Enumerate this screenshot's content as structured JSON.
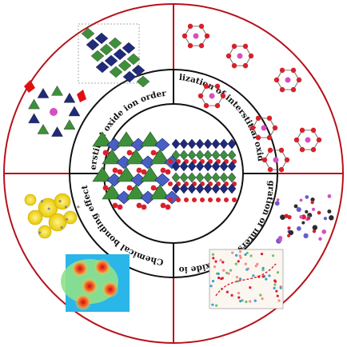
{
  "figure": {
    "ring_color": "#b5121b",
    "labels": {
      "top_left": "Interstitial oxide ion ordering",
      "top_right": "Stabilization of interstitial oxide ions",
      "bottom_right": "Migration of interstitial oxide ions",
      "bottom_left": "Chemical bonding effect"
    },
    "palette": {
      "oxygen": "#d9202a",
      "polyhedra_green": "#3e8f3a",
      "polyhedra_blue": "#1f2a7a",
      "cation_pink": "#d64fc0",
      "density_yellow": "#f2e21a",
      "density_bg": "#2ab6e8"
    }
  }
}
